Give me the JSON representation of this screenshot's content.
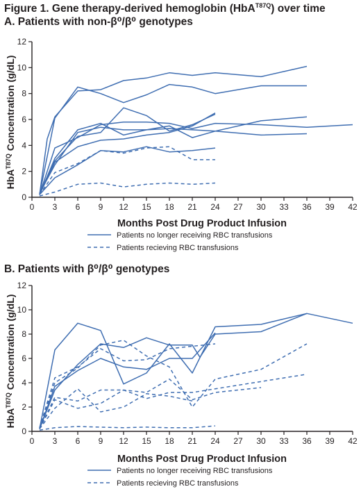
{
  "figure_title": "Figure 1. Gene therapy-derived hemoglobin (HbA^T87Q) over time",
  "panels": {
    "a": {
      "title": "A. Patients with non-β⁰/β⁰ genotypes"
    },
    "b": {
      "title": "B. Patients with β⁰/β⁰ genotypes"
    }
  },
  "colors": {
    "line": "#3e6db1",
    "axis": "#231f20",
    "text": "#231f20"
  },
  "chart_data": [
    {
      "type": "line",
      "panel": "A",
      "title": "A. Patients with non-β⁰/β⁰ genotypes",
      "xlabel": "Months Post Drug Product Infusion",
      "ylabel": "HbA^T87Q Concentration (g/dL)",
      "xlim": [
        0,
        42
      ],
      "ylim": [
        0,
        12
      ],
      "xticks": [
        0,
        3,
        6,
        9,
        12,
        15,
        18,
        21,
        24,
        27,
        30,
        33,
        36,
        39,
        42
      ],
      "yticks": [
        0,
        2,
        4,
        6,
        8,
        10,
        12
      ],
      "grid": false,
      "legend_position": "below",
      "legend": [
        {
          "label": "Patients no longer receiving RBC transfusions",
          "style": "solid"
        },
        {
          "label": "Patients recieving RBC transfusions",
          "style": "dashed"
        }
      ],
      "series": [
        {
          "style": "solid",
          "points": [
            [
              1,
              0.2
            ],
            [
              2,
              4.5
            ],
            [
              3,
              6.2
            ],
            [
              6,
              8.2
            ],
            [
              9,
              8.3
            ],
            [
              12,
              9.0
            ],
            [
              15,
              9.2
            ],
            [
              18,
              9.6
            ],
            [
              21,
              9.4
            ],
            [
              24,
              9.6
            ],
            [
              30,
              9.3
            ],
            [
              36,
              10.1
            ]
          ]
        },
        {
          "style": "solid",
          "points": [
            [
              1,
              0.2
            ],
            [
              3,
              6.1
            ],
            [
              6,
              8.5
            ],
            [
              9,
              8.0
            ],
            [
              12,
              7.3
            ],
            [
              15,
              7.9
            ],
            [
              18,
              8.7
            ],
            [
              21,
              8.5
            ],
            [
              24,
              8.0
            ],
            [
              30,
              8.6
            ],
            [
              36,
              8.6
            ]
          ]
        },
        {
          "style": "solid",
          "points": [
            [
              1,
              0.2
            ],
            [
              3,
              3.8
            ],
            [
              6,
              4.6
            ],
            [
              9,
              5.6
            ],
            [
              12,
              5.8
            ],
            [
              15,
              5.8
            ],
            [
              18,
              5.7
            ],
            [
              21,
              5.3
            ],
            [
              24,
              5.7
            ],
            [
              30,
              5.6
            ],
            [
              36,
              5.4
            ],
            [
              42,
              5.6
            ]
          ]
        },
        {
          "style": "solid",
          "points": [
            [
              1,
              0.2
            ],
            [
              3,
              3.0
            ],
            [
              6,
              5.2
            ],
            [
              9,
              5.7
            ],
            [
              12,
              4.8
            ],
            [
              15,
              5.2
            ],
            [
              18,
              5.5
            ],
            [
              21,
              4.6
            ],
            [
              24,
              5.1
            ],
            [
              30,
              5.9
            ],
            [
              36,
              6.2
            ]
          ]
        },
        {
          "style": "solid",
          "points": [
            [
              1,
              0.3
            ],
            [
              3,
              2.8
            ],
            [
              6,
              4.7
            ],
            [
              9,
              5.0
            ],
            [
              12,
              6.9
            ],
            [
              15,
              6.3
            ],
            [
              18,
              5.1
            ],
            [
              21,
              5.6
            ],
            [
              24,
              6.4
            ]
          ]
        },
        {
          "style": "solid",
          "points": [
            [
              1,
              0.2
            ],
            [
              3,
              2.7
            ],
            [
              6,
              3.9
            ],
            [
              9,
              4.4
            ],
            [
              12,
              4.5
            ],
            [
              15,
              4.8
            ],
            [
              18,
              5.0
            ],
            [
              21,
              5.5
            ],
            [
              24,
              6.5
            ]
          ]
        },
        {
          "style": "solid",
          "points": [
            [
              1,
              0.3
            ],
            [
              3,
              2.5
            ],
            [
              6,
              5.0
            ],
            [
              9,
              5.4
            ],
            [
              12,
              5.2
            ],
            [
              15,
              5.2
            ],
            [
              18,
              5.3
            ],
            [
              21,
              5.2
            ],
            [
              24,
              5.1
            ],
            [
              30,
              4.8
            ],
            [
              36,
              4.9
            ]
          ]
        },
        {
          "style": "solid",
          "points": [
            [
              1,
              0.2
            ],
            [
              3,
              1.5
            ],
            [
              6,
              2.5
            ],
            [
              9,
              3.6
            ],
            [
              12,
              3.5
            ],
            [
              15,
              3.9
            ],
            [
              18,
              3.5
            ],
            [
              21,
              3.6
            ],
            [
              24,
              3.8
            ]
          ]
        },
        {
          "style": "dashed",
          "points": [
            [
              1,
              0.2
            ],
            [
              3,
              1.9
            ],
            [
              6,
              2.6
            ],
            [
              9,
              3.6
            ],
            [
              12,
              3.4
            ],
            [
              15,
              3.8
            ],
            [
              18,
              3.9
            ],
            [
              21,
              2.9
            ],
            [
              24,
              2.9
            ]
          ]
        },
        {
          "style": "dashed",
          "points": [
            [
              1,
              0.1
            ],
            [
              3,
              0.4
            ],
            [
              6,
              1.0
            ],
            [
              9,
              1.1
            ],
            [
              12,
              0.8
            ],
            [
              15,
              1.0
            ],
            [
              18,
              1.1
            ],
            [
              21,
              1.0
            ],
            [
              24,
              1.1
            ]
          ]
        }
      ]
    },
    {
      "type": "line",
      "panel": "B",
      "title": "B. Patients with β⁰/β⁰ genotypes",
      "xlabel": "Months Post Drug Product Infusion",
      "ylabel": "HbA^T87Q Concentration (g/dL)",
      "xlim": [
        0,
        42
      ],
      "ylim": [
        0,
        12
      ],
      "xticks": [
        0,
        3,
        6,
        9,
        12,
        15,
        18,
        21,
        24,
        27,
        30,
        33,
        36,
        39,
        42
      ],
      "yticks": [
        0,
        2,
        4,
        6,
        8,
        10,
        12
      ],
      "grid": false,
      "legend_position": "below",
      "legend": [
        {
          "label": "Patients no longer receiving RBC transfusions",
          "style": "solid"
        },
        {
          "label": "Patients recieving RBC transfusions",
          "style": "dashed"
        }
      ],
      "series": [
        {
          "style": "solid",
          "points": [
            [
              1,
              0.2
            ],
            [
              3,
              6.7
            ],
            [
              6,
              8.9
            ],
            [
              9,
              8.3
            ],
            [
              12,
              3.9
            ],
            [
              15,
              4.8
            ],
            [
              18,
              7.2
            ],
            [
              21,
              4.8
            ],
            [
              24,
              8.6
            ],
            [
              30,
              8.8
            ],
            [
              36,
              9.7
            ],
            [
              42,
              8.9
            ]
          ]
        },
        {
          "style": "solid",
          "points": [
            [
              1,
              0.2
            ],
            [
              3,
              3.4
            ],
            [
              6,
              5.5
            ],
            [
              9,
              7.2
            ],
            [
              12,
              6.9
            ],
            [
              15,
              7.7
            ],
            [
              18,
              7.1
            ],
            [
              21,
              7.1
            ],
            [
              22,
              6.1
            ],
            [
              24,
              8.0
            ],
            [
              30,
              8.2
            ],
            [
              36,
              9.7
            ]
          ]
        },
        {
          "style": "solid",
          "points": [
            [
              1,
              0.2
            ],
            [
              3,
              3.7
            ],
            [
              6,
              5.0
            ],
            [
              9,
              6.0
            ],
            [
              12,
              5.3
            ],
            [
              15,
              5.1
            ],
            [
              18,
              6.0
            ],
            [
              21,
              6.0
            ],
            [
              24,
              8.1
            ]
          ]
        },
        {
          "style": "dashed",
          "points": [
            [
              1,
              0.3
            ],
            [
              3,
              4.0
            ],
            [
              6,
              5.2
            ],
            [
              9,
              7.1
            ],
            [
              12,
              7.5
            ],
            [
              15,
              6.2
            ],
            [
              18,
              5.3
            ],
            [
              21,
              2.0
            ],
            [
              24,
              4.3
            ],
            [
              30,
              5.1
            ],
            [
              36,
              7.2
            ]
          ]
        },
        {
          "style": "dashed",
          "points": [
            [
              1,
              0.3
            ],
            [
              3,
              4.4
            ],
            [
              6,
              5.3
            ],
            [
              9,
              6.8
            ],
            [
              12,
              5.8
            ],
            [
              15,
              5.9
            ],
            [
              18,
              6.8
            ],
            [
              21,
              7.0
            ],
            [
              24,
              7.2
            ]
          ]
        },
        {
          "style": "dashed",
          "points": [
            [
              1,
              0.2
            ],
            [
              3,
              2.8
            ],
            [
              6,
              2.5
            ],
            [
              9,
              3.4
            ],
            [
              12,
              3.4
            ],
            [
              15,
              2.7
            ],
            [
              18,
              3.2
            ],
            [
              21,
              3.2
            ],
            [
              24,
              3.5
            ],
            [
              30,
              4.1
            ],
            [
              36,
              4.7
            ]
          ]
        },
        {
          "style": "dashed",
          "points": [
            [
              1,
              0.2
            ],
            [
              3,
              2.6
            ],
            [
              6,
              1.9
            ],
            [
              9,
              2.3
            ],
            [
              12,
              3.4
            ],
            [
              15,
              3.2
            ],
            [
              18,
              4.3
            ],
            [
              21,
              2.6
            ],
            [
              24,
              3.2
            ],
            [
              30,
              3.6
            ]
          ]
        },
        {
          "style": "dashed",
          "points": [
            [
              1,
              0.2
            ],
            [
              3,
              1.9
            ],
            [
              6,
              3.5
            ],
            [
              9,
              1.6
            ],
            [
              12,
              2.0
            ],
            [
              15,
              3.1
            ],
            [
              18,
              2.9
            ],
            [
              21,
              2.5
            ]
          ]
        },
        {
          "style": "dashed",
          "points": [
            [
              1,
              0.1
            ],
            [
              3,
              0.3
            ],
            [
              6,
              0.4
            ],
            [
              9,
              0.35
            ],
            [
              12,
              0.3
            ],
            [
              15,
              0.35
            ],
            [
              18,
              0.3
            ],
            [
              21,
              0.3
            ],
            [
              24,
              0.45
            ]
          ]
        }
      ]
    }
  ]
}
